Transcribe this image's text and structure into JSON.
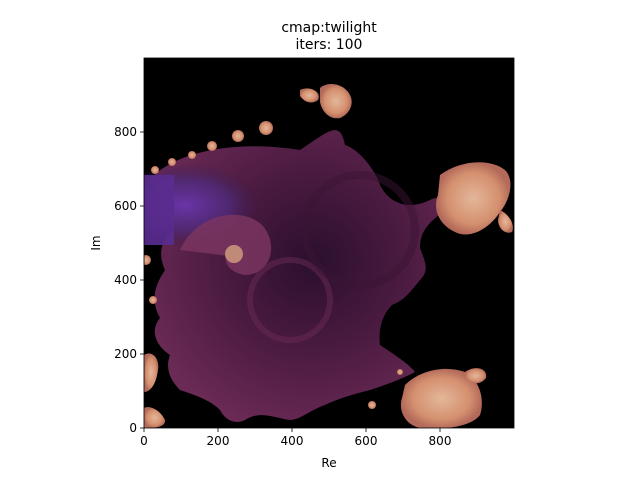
{
  "chart_data": {
    "type": "heatmap",
    "title_lines": [
      "cmap:twilight",
      "iters: 100"
    ],
    "xlabel": "Re",
    "ylabel": "Im",
    "xlim": [
      0,
      1000
    ],
    "ylim": [
      0,
      1000
    ],
    "xticks": [
      0,
      200,
      400,
      600,
      800
    ],
    "yticks": [
      0,
      200,
      400,
      600,
      800
    ],
    "colormap": "twilight",
    "background_color": "#000000",
    "colors": {
      "fractal_body": "#5a1f4a",
      "spiral_core": "#2a0f2e",
      "upper_left_glow": "#5e2a8c",
      "tendrils": "#d4906f"
    }
  }
}
